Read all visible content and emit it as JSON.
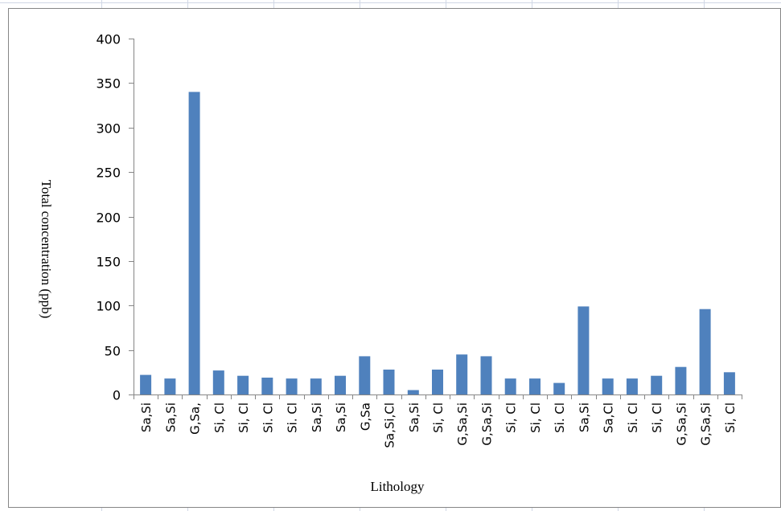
{
  "chart_data": {
    "type": "bar",
    "xlabel": "Lithology",
    "ylabel": "Total concentration  (ppb)",
    "ylim": [
      0,
      400
    ],
    "yticks": [
      0,
      50,
      100,
      150,
      200,
      250,
      300,
      350,
      400
    ],
    "categories": [
      "Sa,Si",
      "Sa,Si",
      "G,Sa,",
      "Si, Cl",
      "Si, Cl",
      "Si. Cl",
      "Si. Cl",
      "Sa,Si",
      "Sa,Si",
      "G,Sa",
      "Sa,Si,Cl",
      "Sa,Si",
      "Si, Cl",
      "G,Sa,Si",
      "G,Sa,Si",
      "Si, Cl",
      "Si, Cl",
      "Si. Cl",
      "Sa,Si",
      "Sa,Cl",
      "Si. Cl",
      "Si, Cl",
      "G,Sa,Si",
      "G,Sa,Si",
      "Si, Cl"
    ],
    "values": [
      22,
      18,
      340,
      27,
      21,
      19,
      18,
      18,
      21,
      43,
      28,
      5,
      28,
      45,
      43,
      18,
      18,
      13,
      99,
      18,
      18,
      21,
      31,
      96,
      25
    ],
    "bar_color": "#4f81bd",
    "grid": false,
    "legend": "none"
  }
}
